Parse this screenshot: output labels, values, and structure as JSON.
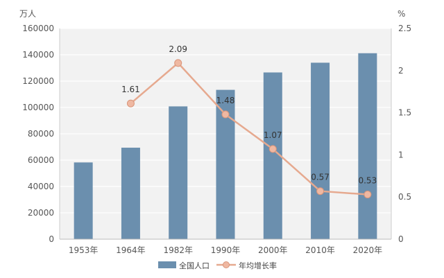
{
  "chart_data": {
    "type": "bar",
    "categories": [
      "1953年",
      "1964年",
      "1982年",
      "1990年",
      "2000年",
      "2010年",
      "2020年"
    ],
    "series": [
      {
        "name": "全国人口",
        "type": "bar",
        "axis": "left",
        "values": [
          58260,
          69458,
          100818,
          113368,
          126583,
          133972,
          141178
        ]
      },
      {
        "name": "年均增长率",
        "type": "line",
        "axis": "right",
        "values": [
          null,
          1.61,
          2.09,
          1.48,
          1.07,
          0.57,
          0.53
        ],
        "labels": [
          "",
          "1.61",
          "2.09",
          "1.48",
          "1.07",
          "0.57",
          "0.53"
        ]
      }
    ],
    "ylabel_left": "万人",
    "ylabel_right": "%",
    "ylim_left": [
      0,
      160000
    ],
    "ylim_right": [
      0,
      2.5
    ],
    "yticks_left": [
      "0",
      "20000",
      "40000",
      "60000",
      "80000",
      "100000",
      "120000",
      "140000",
      "160000"
    ],
    "yticks_right": [
      "0",
      "0.5",
      "1",
      "1.5",
      "2",
      "2.5"
    ],
    "grid": true,
    "legend_position": "bottom",
    "colors": {
      "bar": "#6b8fae",
      "line": "#e6a98f",
      "marker_fill": "#efb8a2",
      "plot_background": "#f2f2f2",
      "gridline": "#ffffff"
    }
  }
}
